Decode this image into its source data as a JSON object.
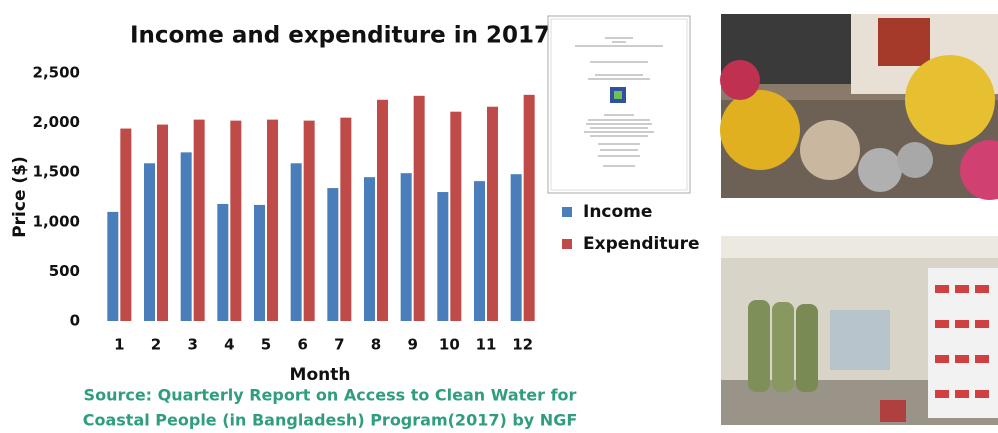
{
  "chart_data": {
    "type": "bar",
    "title": "Income and expenditure in 2017",
    "x_label": "Month",
    "y_label": "Price ($)",
    "source_lines": [
      "Source: Quarterly Report on Access to Clean Water for",
      "Coastal People (in Bangladesh) Program(2017) by NGF"
    ],
    "categories": [
      "1",
      "2",
      "3",
      "4",
      "5",
      "6",
      "7",
      "8",
      "9",
      "10",
      "11",
      "12"
    ],
    "series": [
      {
        "name": "Income",
        "color": "#4a7ebb",
        "values": [
          1100,
          1590,
          1700,
          1180,
          1170,
          1590,
          1340,
          1450,
          1490,
          1300,
          1410,
          1480
        ]
      },
      {
        "name": "Expenditure",
        "color": "#be4b48",
        "values": [
          1940,
          1980,
          2030,
          2020,
          2030,
          2020,
          2050,
          2230,
          2270,
          2110,
          2160,
          2280
        ]
      }
    ],
    "ylim": [
      0,
      2500
    ],
    "yticks": [
      0,
      500,
      {
        "value": 1000,
        "label": "1,000"
      },
      {
        "value": 1500,
        "label": "1,500"
      },
      {
        "value": 2000,
        "label": "2,000"
      },
      {
        "value": 2500,
        "label": "2,500"
      }
    ],
    "grid": false,
    "legend": "right"
  }
}
